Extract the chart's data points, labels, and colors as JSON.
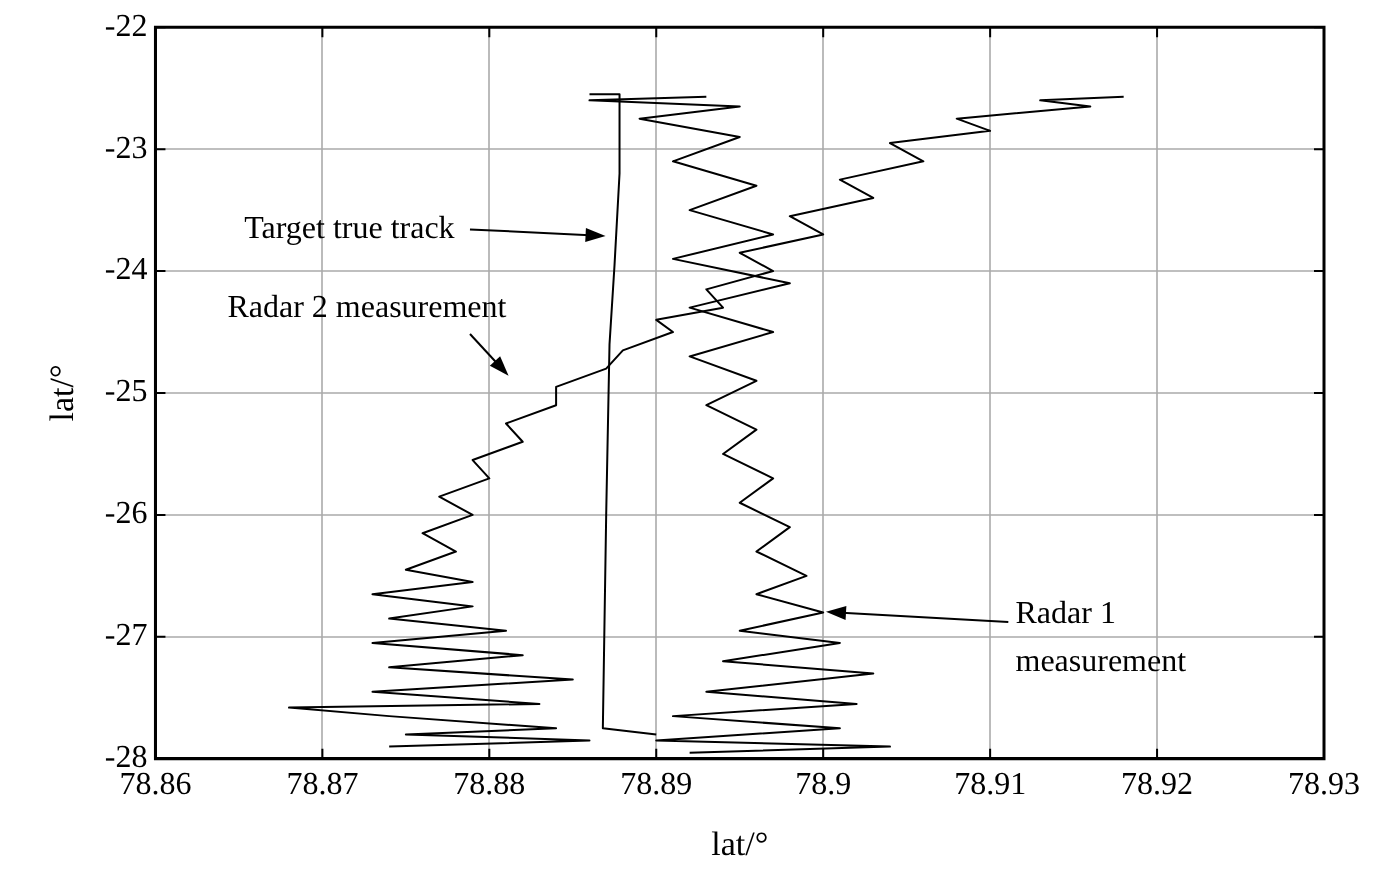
{
  "chart_data": {
    "type": "line",
    "xlabel": "lat/°",
    "ylabel": "lat/°",
    "xlim": [
      78.86,
      78.93
    ],
    "xticks": [
      78.86,
      78.87,
      78.88,
      78.89,
      78.9,
      78.91,
      78.92,
      78.93
    ],
    "ylim": [
      -28,
      -22
    ],
    "yticks": [
      -28,
      -27,
      -26,
      -25,
      -24,
      -23,
      -22
    ],
    "grid": true,
    "legend": false,
    "marker": "none",
    "line_style": "solid",
    "series": [
      {
        "color": "#000000",
        "x": [
          78.874,
          78.886,
          78.875,
          78.884,
          78.874,
          78.868,
          78.883,
          78.873,
          78.885,
          78.874,
          78.882,
          78.873,
          78.881,
          78.874,
          78.879,
          78.873,
          78.879,
          78.875,
          78.878,
          78.876,
          78.879,
          78.877,
          78.88,
          78.879,
          78.882,
          78.881,
          78.884,
          78.884,
          78.887,
          78.888,
          78.891,
          78.89,
          78.894,
          78.893,
          78.897,
          78.895,
          78.9,
          78.898,
          78.903,
          78.901,
          78.906,
          78.904,
          78.91,
          78.908,
          78.916,
          78.913,
          78.918
        ],
        "values": [
          -27.9,
          -27.85,
          -27.8,
          -27.75,
          -27.65,
          -27.58,
          -27.55,
          -27.45,
          -27.35,
          -27.25,
          -27.15,
          -27.05,
          -26.95,
          -26.85,
          -26.75,
          -26.65,
          -26.55,
          -26.45,
          -26.3,
          -26.15,
          -26,
          -25.85,
          -25.7,
          -25.55,
          -25.4,
          -25.25,
          -25.1,
          -24.95,
          -24.8,
          -24.65,
          -24.5,
          -24.4,
          -24.3,
          -24.15,
          -24,
          -23.85,
          -23.7,
          -23.55,
          -23.4,
          -23.25,
          -23.1,
          -22.95,
          -22.85,
          -22.75,
          -22.65,
          -22.6,
          -22.57
        ]
      },
      {
        "color": "#000000",
        "x": [
          78.892,
          78.904,
          78.89,
          78.901,
          78.891,
          78.902,
          78.893,
          78.903,
          78.894,
          78.901,
          78.895,
          78.9,
          78.896,
          78.899,
          78.896,
          78.898,
          78.895,
          78.897,
          78.894,
          78.896,
          78.893,
          78.896,
          78.892,
          78.897,
          78.892,
          78.898,
          78.891,
          78.897,
          78.892,
          78.896,
          78.891,
          78.895,
          78.889,
          78.895,
          78.886,
          78.893
        ],
        "values": [
          -27.95,
          -27.9,
          -27.85,
          -27.75,
          -27.65,
          -27.55,
          -27.45,
          -27.3,
          -27.2,
          -27.05,
          -26.95,
          -26.8,
          -26.65,
          -26.5,
          -26.3,
          -26.1,
          -25.9,
          -25.7,
          -25.5,
          -25.3,
          -25.1,
          -24.9,
          -24.7,
          -24.5,
          -24.3,
          -24.1,
          -23.9,
          -23.7,
          -23.5,
          -23.3,
          -23.1,
          -22.9,
          -22.75,
          -22.65,
          -22.6,
          -22.57
        ]
      },
      {
        "color": "#000000",
        "x": [
          78.886,
          78.8878,
          78.8878,
          78.8875,
          78.8872,
          78.887,
          78.8868,
          78.89
        ],
        "values": [
          -22.55,
          -22.55,
          -23.2,
          -23.95,
          -24.6,
          -26,
          -27.75,
          -27.8
        ]
      }
    ],
    "annotations": [
      "Target true track",
      "Radar 2 measurement",
      "Radar 1 measurement"
    ]
  }
}
